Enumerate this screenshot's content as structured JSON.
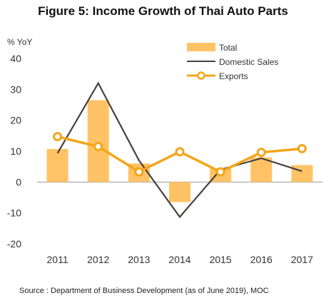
{
  "chart_data": {
    "type": "bar",
    "title": "Figure 5: Income Growth of Thai Auto Parts",
    "ylabel": "% YoY",
    "xlabel": "",
    "ylim": [
      -20,
      40
    ],
    "yticks": [
      -20,
      -10,
      0,
      10,
      20,
      30,
      40
    ],
    "categories": [
      "2011",
      "2012",
      "2013",
      "2014",
      "2015",
      "2016",
      "2017"
    ],
    "series": [
      {
        "name": "Total",
        "kind": "bar",
        "color": "#FFC366",
        "values": [
          10.7,
          26.5,
          6.0,
          -6.5,
          4.5,
          8.0,
          5.5
        ]
      },
      {
        "name": "Domestic Sales",
        "kind": "line",
        "color": "#4A3F3F",
        "values": [
          9.3,
          32.0,
          7.0,
          -11.3,
          4.0,
          7.7,
          3.5
        ]
      },
      {
        "name": "Exports",
        "kind": "line-marker",
        "color": "#F5A519",
        "values": [
          14.7,
          11.5,
          3.3,
          9.8,
          3.3,
          9.6,
          10.8
        ]
      }
    ],
    "legend": "top-right",
    "grid": false
  },
  "source": "Source : Department of Business Development (as of June 2019), MOC"
}
